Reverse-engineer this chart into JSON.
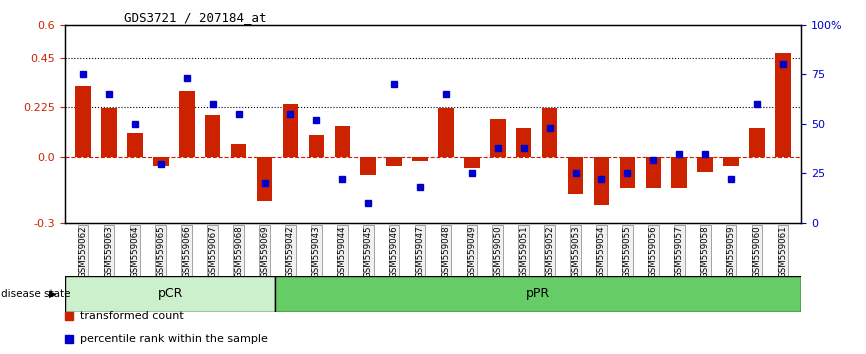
{
  "title": "GDS3721 / 207184_at",
  "samples": [
    "GSM559062",
    "GSM559063",
    "GSM559064",
    "GSM559065",
    "GSM559066",
    "GSM559067",
    "GSM559068",
    "GSM559069",
    "GSM559042",
    "GSM559043",
    "GSM559044",
    "GSM559045",
    "GSM559046",
    "GSM559047",
    "GSM559048",
    "GSM559049",
    "GSM559050",
    "GSM559051",
    "GSM559052",
    "GSM559053",
    "GSM559054",
    "GSM559055",
    "GSM559056",
    "GSM559057",
    "GSM559058",
    "GSM559059",
    "GSM559060",
    "GSM559061"
  ],
  "transformed_count": [
    0.32,
    0.22,
    0.11,
    -0.04,
    0.3,
    0.19,
    0.06,
    -0.2,
    0.24,
    0.1,
    0.14,
    -0.08,
    -0.04,
    -0.02,
    0.22,
    -0.05,
    0.17,
    0.13,
    0.22,
    -0.17,
    -0.22,
    -0.14,
    -0.14,
    -0.14,
    -0.07,
    -0.04,
    0.13,
    0.47
  ],
  "percentile_rank": [
    75,
    65,
    50,
    30,
    73,
    60,
    55,
    20,
    55,
    52,
    22,
    10,
    70,
    18,
    65,
    25,
    38,
    38,
    48,
    25,
    22,
    25,
    32,
    35,
    35,
    22,
    60,
    80
  ],
  "pCR_count": 8,
  "pPR_count": 20,
  "ylim": [
    -0.3,
    0.6
  ],
  "yticks_left": [
    -0.3,
    0.0,
    0.225,
    0.45,
    0.6
  ],
  "yticks_right": [
    0,
    25,
    50,
    75,
    100
  ],
  "dotted_lines": [
    0.225,
    0.45
  ],
  "bar_color": "#cc2200",
  "square_color": "#0000cc",
  "zero_line_color": "#cc2200",
  "pCR_color": "#ccf0cc",
  "pPR_color": "#66cc66",
  "bg_color": "#f0f0f0"
}
